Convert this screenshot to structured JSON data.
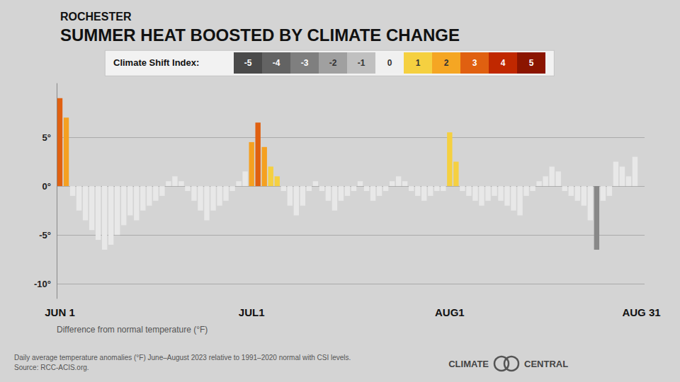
{
  "chart_data": {
    "type": "bar",
    "title": "ROCHESTER",
    "subtitle": "SUMMER HEAT BOOSTED BY CLIMATE CHANGE",
    "y_label": "Difference from normal temperature (°F)",
    "footnote": "Daily average temperature anomalies (°F) June–August 2023 relative to 1991–2020 normal with CSI levels.\nSource: RCC-ACIS.org.",
    "logo": [
      "CLIMATE",
      "CENTRAL"
    ],
    "categories": [
      "JUN 1",
      null,
      null,
      null,
      null,
      null,
      null,
      null,
      null,
      null,
      null,
      null,
      null,
      null,
      null,
      null,
      null,
      null,
      null,
      null,
      null,
      null,
      null,
      null,
      null,
      null,
      null,
      null,
      null,
      null,
      "JUL1",
      null,
      null,
      null,
      null,
      null,
      null,
      null,
      null,
      null,
      null,
      null,
      null,
      null,
      null,
      null,
      null,
      null,
      null,
      null,
      null,
      null,
      null,
      null,
      null,
      null,
      null,
      null,
      null,
      null,
      null,
      "AUG1",
      null,
      null,
      null,
      null,
      null,
      null,
      null,
      null,
      null,
      null,
      null,
      null,
      null,
      null,
      null,
      null,
      null,
      null,
      null,
      null,
      null,
      null,
      null,
      null,
      null,
      null,
      null,
      null,
      null,
      "AUG 31"
    ],
    "values": [
      9.0,
      7.0,
      -1.0,
      -2.5,
      -3.5,
      -4.5,
      -5.5,
      -6.5,
      -6.0,
      -5.0,
      -4.0,
      -3.0,
      -3.5,
      -2.5,
      -2.0,
      -1.5,
      -1.0,
      0.5,
      1.0,
      0.5,
      -0.5,
      -1.5,
      -2.5,
      -3.5,
      -2.5,
      -2.0,
      -1.5,
      -0.5,
      0.5,
      1.5,
      4.5,
      6.5,
      4.0,
      2.0,
      1.0,
      -0.5,
      -2.0,
      -3.0,
      -2.0,
      -0.5,
      0.5,
      -0.5,
      -1.5,
      -2.5,
      -1.5,
      -1.0,
      -0.5,
      0.5,
      -0.5,
      -1.5,
      -1.0,
      -0.5,
      0.5,
      1.0,
      0.5,
      -0.5,
      -1.0,
      -1.5,
      -1.0,
      -0.5,
      -0.5,
      5.5,
      2.5,
      -0.5,
      -1.0,
      -1.5,
      -2.0,
      -1.5,
      -1.0,
      -1.5,
      -2.0,
      -2.5,
      -3.0,
      -1.0,
      -0.5,
      0.5,
      1.0,
      2.0,
      1.5,
      -0.5,
      -1.0,
      -1.5,
      -2.0,
      -3.5,
      -6.5,
      -1.5,
      -1.0,
      2.5,
      2.0,
      1.0,
      3.0,
      null
    ],
    "colors": [
      "#e06010",
      "#f5a020",
      "#e8e8e8",
      "#e8e8e8",
      "#e8e8e8",
      "#e8e8e8",
      "#e8e8e8",
      "#e8e8e8",
      "#e8e8e8",
      "#e8e8e8",
      "#e8e8e8",
      "#e8e8e8",
      "#e8e8e8",
      "#e8e8e8",
      "#e8e8e8",
      "#e8e8e8",
      "#e8e8e8",
      "#e8e8e8",
      "#e8e8e8",
      "#e8e8e8",
      "#e8e8e8",
      "#e8e8e8",
      "#e8e8e8",
      "#e8e8e8",
      "#e8e8e8",
      "#e8e8e8",
      "#e8e8e8",
      "#e8e8e8",
      "#e8e8e8",
      "#e8e8e8",
      "#f5a020",
      "#e06010",
      "#f5a020",
      "#f5d040",
      "#f5d040",
      "#e8e8e8",
      "#e8e8e8",
      "#e8e8e8",
      "#e8e8e8",
      "#e8e8e8",
      "#e8e8e8",
      "#e8e8e8",
      "#e8e8e8",
      "#e8e8e8",
      "#e8e8e8",
      "#e8e8e8",
      "#e8e8e8",
      "#e8e8e8",
      "#e8e8e8",
      "#e8e8e8",
      "#e8e8e8",
      "#e8e8e8",
      "#e8e8e8",
      "#e8e8e8",
      "#e8e8e8",
      "#e8e8e8",
      "#e8e8e8",
      "#e8e8e8",
      "#e8e8e8",
      "#e8e8e8",
      "#e8e8e8",
      "#f5d040",
      "#f5d040",
      "#e8e8e8",
      "#e8e8e8",
      "#e8e8e8",
      "#e8e8e8",
      "#e8e8e8",
      "#e8e8e8",
      "#e8e8e8",
      "#e8e8e8",
      "#e8e8e8",
      "#e8e8e8",
      "#e8e8e8",
      "#e8e8e8",
      "#e8e8e8",
      "#e8e8e8",
      "#e8e8e8",
      "#e8e8e8",
      "#e8e8e8",
      "#e8e8e8",
      "#e8e8e8",
      "#e8e8e8",
      "#e8e8e8",
      "#888888",
      "#e8e8e8",
      "#e8e8e8",
      "#e8e8e8",
      "#e8e8e8",
      "#e8e8e8",
      "#e8e8e8",
      null
    ],
    "ylim": [
      -11.5,
      10.5
    ],
    "yticks": [
      {
        "value": -10,
        "label": "-10°"
      },
      {
        "value": -5,
        "label": "-5°"
      },
      {
        "value": 0,
        "label": "0°"
      },
      {
        "value": 5,
        "label": "5°"
      }
    ],
    "grid": true,
    "csi_scale": {
      "label": "Climate Shift Index:",
      "levels": [
        -5,
        -4,
        -3,
        -2,
        -1,
        0,
        1,
        2,
        3,
        4,
        5
      ],
      "colors": [
        "#4a4a4a",
        "#636363",
        "#7f7f7f",
        "#a0a0a0",
        "#c0c0c0",
        "#f0f0f0",
        "#f5d040",
        "#f5a623",
        "#e06010",
        "#c02800",
        "#8b1500"
      ]
    }
  }
}
